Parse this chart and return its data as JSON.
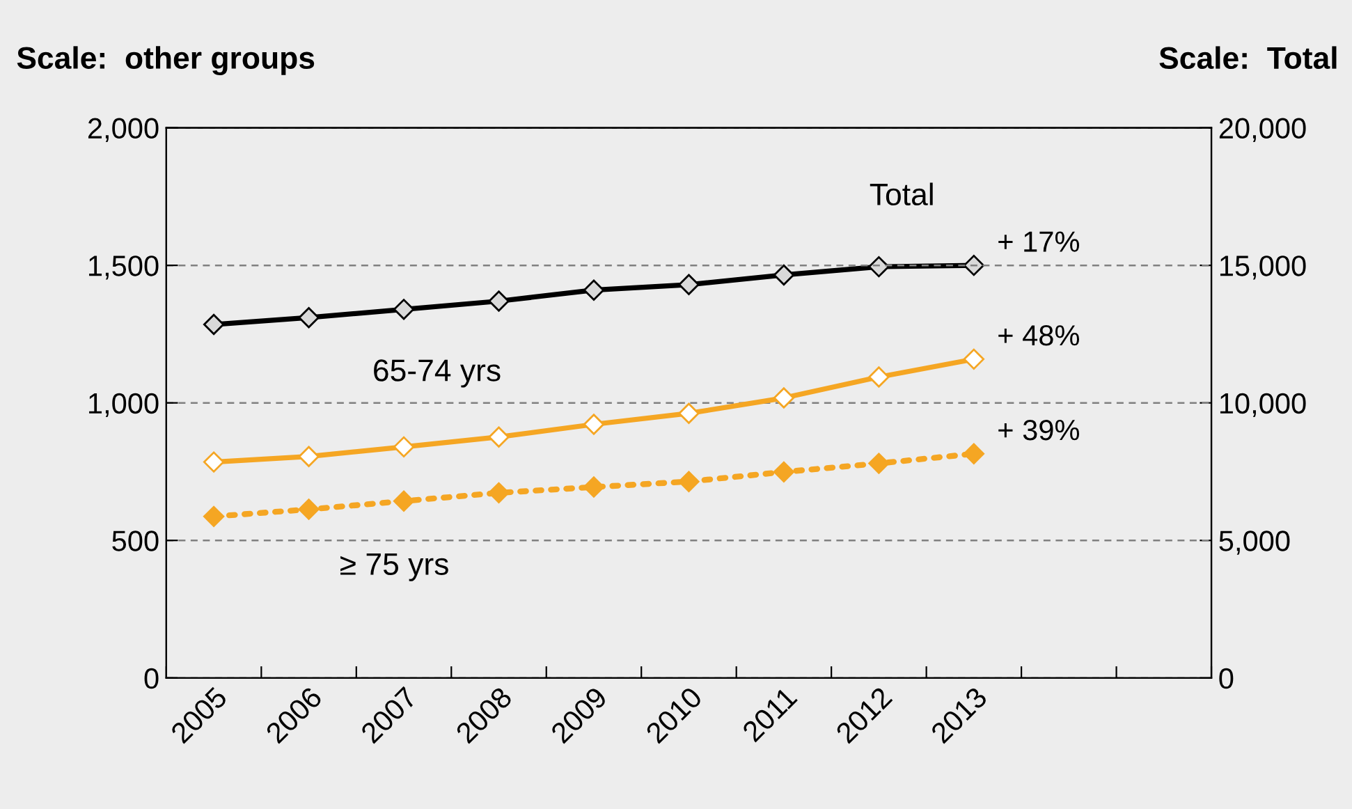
{
  "chart_data": {
    "type": "line",
    "ylabel": "Scale:  other groups",
    "y2label": "Scale:  Total",
    "categories": [
      "2005",
      "2006",
      "2007",
      "2008",
      "2009",
      "2010",
      "2011",
      "2012",
      "2013",
      null,
      null
    ],
    "series": [
      {
        "name": "Total",
        "color": "#000000",
        "axis": "y2",
        "line_style": "solid",
        "values": [
          12850,
          13100,
          13400,
          13700,
          14100,
          14300,
          14650,
          14950,
          15000,
          null,
          null
        ]
      },
      {
        "name": "65-74 yrs",
        "color": "#f5a623",
        "line_style": "solid",
        "values": [
          785,
          805,
          840,
          876,
          922,
          962,
          1018,
          1094,
          1159,
          null,
          null
        ]
      },
      {
        "name": "≥ 75 yrs",
        "color": "#f5a623",
        "line_style": "dotted",
        "values": [
          587,
          613,
          643,
          673,
          694,
          714,
          749,
          780,
          815,
          null,
          null
        ]
      }
    ],
    "annotations": [
      {
        "text": "+ 17%",
        "x": "2013",
        "y": 1500
      },
      {
        "text": "+ 48%",
        "x": "2013",
        "y": 1159
      },
      {
        "text": "+ 39%",
        "x": "2013",
        "y": 815
      }
    ],
    "ylim": [
      0,
      2000
    ],
    "yticks": [
      0,
      {
        "value": 500,
        "label": "500"
      },
      {
        "value": 1000,
        "label": "1,000"
      },
      {
        "value": 1500,
        "label": "1,500"
      },
      {
        "value": 2000,
        "label": "2,000"
      }
    ],
    "y2lim": [
      0,
      20000
    ],
    "y2ticks": [
      0,
      {
        "value": 5000,
        "label": "5,000"
      },
      {
        "value": 10000,
        "label": "10,000"
      },
      {
        "value": 15000,
        "label": "15,000"
      },
      {
        "value": 20000,
        "label": "20,000"
      }
    ],
    "grid": "y",
    "marker": "diamond",
    "legend": false
  }
}
